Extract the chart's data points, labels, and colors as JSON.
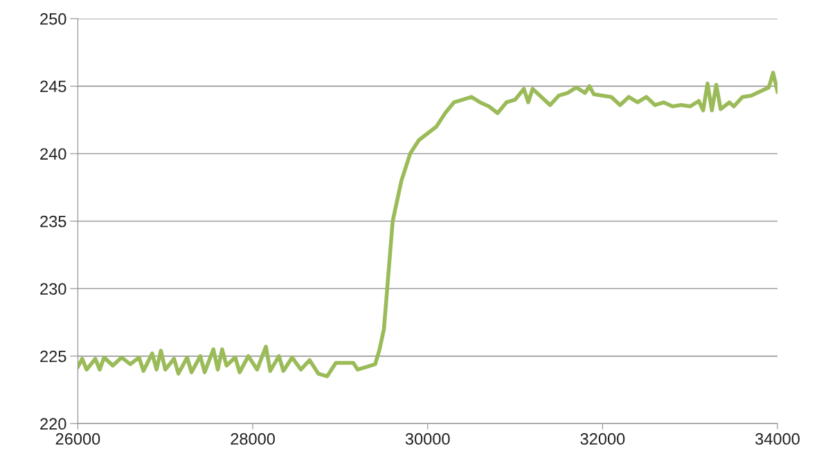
{
  "chart_data": {
    "type": "line",
    "x": [
      26000,
      26050,
      26100,
      26200,
      26250,
      26300,
      26400,
      26500,
      26600,
      26700,
      26750,
      26850,
      26900,
      26950,
      27000,
      27100,
      27150,
      27250,
      27300,
      27400,
      27450,
      27550,
      27600,
      27650,
      27700,
      27800,
      27850,
      27950,
      28050,
      28150,
      28200,
      28300,
      28350,
      28450,
      28550,
      28650,
      28750,
      28850,
      28950,
      29050,
      29150,
      29200,
      29300,
      29400,
      29450,
      29500,
      29550,
      29600,
      29700,
      29800,
      29900,
      30000,
      30100,
      30150,
      30200,
      30300,
      30400,
      30500,
      30600,
      30700,
      30800,
      30900,
      31000,
      31100,
      31150,
      31200,
      31300,
      31400,
      31500,
      31600,
      31700,
      31800,
      31850,
      31900,
      32000,
      32100,
      32200,
      32300,
      32400,
      32500,
      32600,
      32700,
      32800,
      32900,
      33000,
      33100,
      33150,
      33200,
      33250,
      33300,
      33350,
      33450,
      33500,
      33600,
      33700,
      33800,
      33900,
      33950,
      34000
    ],
    "series": [
      {
        "color": "#9bbb59",
        "values": [
          224.2,
          224.8,
          224.0,
          224.8,
          224.0,
          224.9,
          224.3,
          224.9,
          224.4,
          224.9,
          223.9,
          225.2,
          224.0,
          225.4,
          224.0,
          224.8,
          223.7,
          224.9,
          223.8,
          225.0,
          223.8,
          225.5,
          224.0,
          225.5,
          224.3,
          224.9,
          223.8,
          225.0,
          224.0,
          225.7,
          223.9,
          225.0,
          223.9,
          224.9,
          224.0,
          224.7,
          223.7,
          223.5,
          224.5,
          224.5,
          224.5,
          224.0,
          224.2,
          224.4,
          225.5,
          227,
          231,
          235,
          238,
          240,
          241,
          241.5,
          242,
          242.5,
          243,
          243.8,
          244,
          244.2,
          243.8,
          243.5,
          243,
          243.8,
          244,
          244.8,
          243.8,
          244.8,
          244.2,
          243.6,
          244.3,
          244.5,
          244.9,
          244.5,
          245,
          244.4,
          244.3,
          244.2,
          243.6,
          244.2,
          243.8,
          244.2,
          243.6,
          243.8,
          243.5,
          243.6,
          243.5,
          243.9,
          243.2,
          245.2,
          243.2,
          245.1,
          243.3,
          243.8,
          243.5,
          244.2,
          244.3,
          244.6,
          244.9,
          246,
          244.6
        ]
      }
    ],
    "xlim": [
      26000,
      34000
    ],
    "xticks": [
      26000,
      28000,
      30000,
      32000,
      34000
    ],
    "ylim": [
      220,
      250
    ],
    "yticks": [
      220,
      225,
      230,
      235,
      240,
      245,
      250
    ],
    "grid": "y",
    "marker": "none",
    "line_style": "solid"
  }
}
